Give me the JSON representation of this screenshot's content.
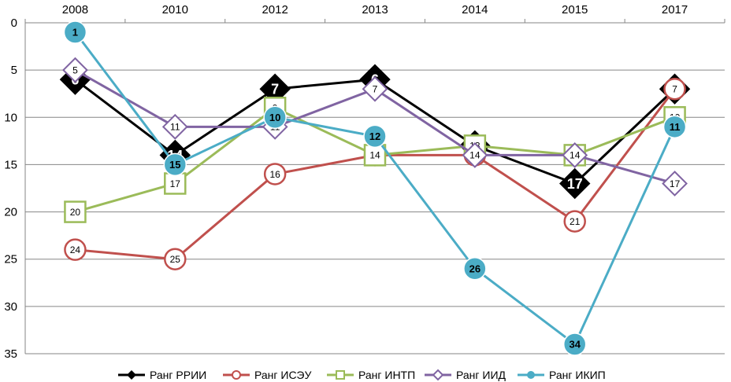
{
  "chart_data": {
    "type": "line",
    "categories": [
      "2008",
      "2010",
      "2012",
      "2013",
      "2014",
      "2015",
      "2017"
    ],
    "y_axis": {
      "min": 0,
      "max": 35,
      "step": 5,
      "inverted": true,
      "ticks": [
        0,
        5,
        10,
        15,
        20,
        25,
        30,
        35
      ]
    },
    "x_axis_position": "top",
    "legend_position": "bottom",
    "series": [
      {
        "name": "Ранг РРИИ",
        "color": "#000000",
        "marker": "diamond-filled",
        "values": [
          6,
          14,
          7,
          6,
          13,
          17,
          7
        ],
        "labels": [
          "6",
          "14",
          "7",
          "6",
          "13",
          "17",
          "7"
        ]
      },
      {
        "name": "Ранг ИСЭУ",
        "color": "#c0504d",
        "marker": "circle-open",
        "values": [
          24,
          25,
          16,
          14,
          14,
          21,
          7
        ],
        "labels": [
          "24",
          "25",
          "16",
          "14",
          "14",
          "21",
          "7"
        ]
      },
      {
        "name": "Ранг ИНТП",
        "color": "#9bbb59",
        "marker": "square-open",
        "values": [
          20,
          17,
          9,
          14,
          13,
          14,
          10
        ],
        "labels": [
          "20",
          "17",
          "9",
          "14",
          "13",
          "14",
          "10"
        ]
      },
      {
        "name": "Ранг ИИД",
        "color": "#8064a2",
        "marker": "diamond-open",
        "values": [
          5,
          11,
          11,
          7,
          14,
          14,
          17
        ],
        "labels": [
          "5",
          "11",
          "11",
          "7",
          "14",
          "14",
          "17"
        ]
      },
      {
        "name": "Ранг ИКИП",
        "color": "#4bacc6",
        "marker": "circle-filled",
        "values": [
          1,
          15,
          10,
          12,
          26,
          34,
          11
        ],
        "labels": [
          "1",
          "15",
          "10",
          "12",
          "26",
          "34",
          "11"
        ]
      }
    ]
  }
}
